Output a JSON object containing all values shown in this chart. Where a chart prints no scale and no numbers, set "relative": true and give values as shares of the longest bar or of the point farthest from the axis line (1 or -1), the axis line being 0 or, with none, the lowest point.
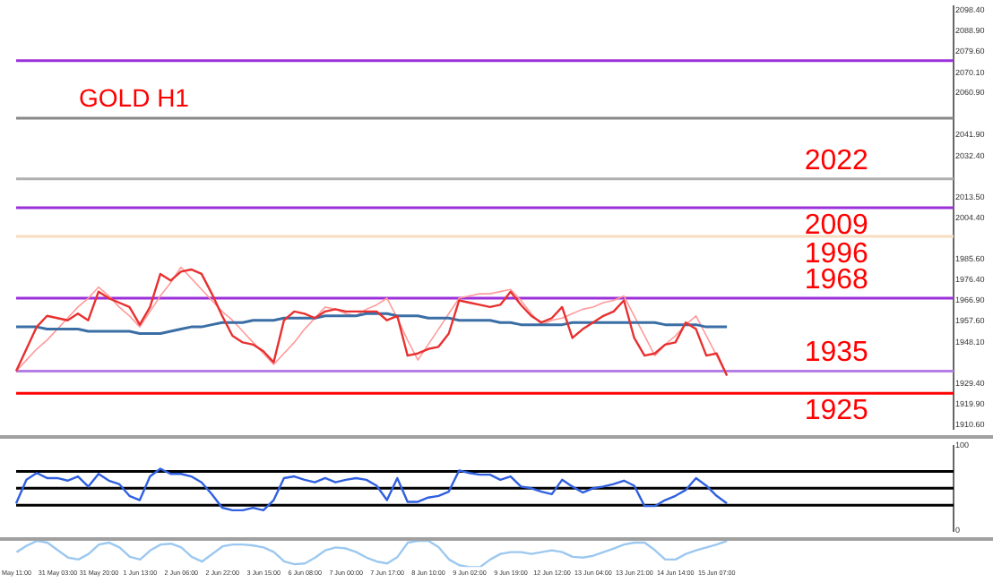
{
  "chart_data": [
    {
      "type": "line",
      "title": "GOLD H1",
      "categories": [
        null,
        null,
        null,
        null,
        null,
        null,
        null,
        null,
        null,
        null,
        null,
        null,
        null,
        null,
        null,
        null,
        null,
        null,
        null,
        null,
        null,
        null,
        null,
        null,
        null,
        null,
        null,
        null,
        null,
        null,
        null,
        null,
        null,
        null,
        null,
        null,
        null,
        null,
        null,
        null,
        null,
        null,
        null,
        null,
        null,
        null,
        null,
        null,
        null,
        null,
        null,
        null,
        null,
        null,
        null,
        null,
        null,
        null,
        null,
        null,
        null,
        null,
        null,
        null,
        null,
        null,
        null,
        null,
        null,
        null,
        null,
        null,
        null,
        null,
        null,
        null,
        null,
        null,
        null,
        null,
        null,
        null,
        null,
        null,
        null,
        null,
        null,
        null,
        null,
        null,
        null,
        null
      ],
      "series": [
        {
          "color": "#e83030",
          "values": [
            1935,
            1945,
            1955,
            1960,
            1959,
            1958,
            1961,
            1958,
            1971,
            1968,
            1966,
            1964,
            1956,
            1964,
            1979,
            1976,
            1980,
            1981,
            1979,
            1970,
            1960,
            1951,
            1948,
            1947,
            1944,
            1939,
            1958,
            1962,
            1961,
            1959,
            1962,
            1963,
            1962,
            1962,
            1962,
            1962,
            1958,
            1960,
            1942,
            1943,
            1945,
            1946,
            1952,
            1967,
            1966,
            1965,
            1964,
            1965,
            1971,
            1965,
            1960,
            1957,
            1959,
            1964,
            1950,
            1954,
            1957,
            1960,
            1962,
            1967,
            1950,
            1942,
            1943,
            1947,
            1948,
            1957,
            1954,
            1942,
            1943,
            1933,
            null,
            null,
            null,
            null,
            null,
            null,
            null,
            null,
            null,
            null,
            null,
            null,
            null,
            null,
            null,
            null,
            null,
            null,
            null,
            null,
            null,
            null
          ]
        },
        {
          "color": "#3a6ea5",
          "values": [
            1955,
            1955,
            1955,
            1954,
            1954,
            1954,
            1954,
            1953,
            1953,
            1953,
            1953,
            1953,
            1952,
            1952,
            1952,
            1953,
            1954,
            1955,
            1955,
            1956,
            1957,
            1957,
            1957,
            1958,
            1958,
            1958,
            1959,
            1959,
            1959,
            1959,
            1960,
            1960,
            1960,
            1960,
            1961,
            1961,
            1961,
            1960,
            1960,
            1960,
            1959,
            1959,
            1959,
            1958,
            1958,
            1958,
            1958,
            1957,
            1957,
            1956,
            1956,
            1956,
            1956,
            1956,
            1957,
            1957,
            1957,
            1957,
            1957,
            1957,
            1957,
            1957,
            1957,
            1956,
            1956,
            1956,
            1956,
            1955,
            1955,
            1955,
            null,
            null,
            null,
            null,
            null,
            null,
            null,
            null,
            null,
            null,
            null,
            null,
            null,
            null,
            null,
            null,
            null,
            null,
            null,
            null,
            null,
            null
          ]
        },
        {
          "color": "#ff9a9a",
          "values": [
            1935,
            1940,
            1945,
            1949,
            1954,
            1959,
            1964,
            1968,
            1973,
            1969,
            1964,
            1960,
            1955,
            1962,
            1969,
            1975,
            1982,
            1977,
            1972,
            1967,
            1962,
            1958,
            1953,
            1948,
            1943,
            1938,
            1943,
            1948,
            1954,
            1959,
            1964,
            1963,
            1961,
            1960,
            1963,
            1965,
            1968,
            1959,
            1949,
            1940,
            1947,
            1954,
            1961,
            1968,
            1969,
            1970,
            1970,
            1971,
            1972,
            1967,
            1961,
            1956,
            1958,
            1959,
            1961,
            1963,
            1964,
            1966,
            1967,
            1969,
            1960,
            1951,
            1942,
            1947,
            1951,
            1956,
            1960,
            1951,
            1942,
            1933,
            null,
            null,
            null,
            null,
            null,
            null,
            null,
            null,
            null,
            null,
            null,
            null,
            null,
            null,
            null,
            null,
            null,
            null,
            null,
            null,
            null,
            null
          ]
        }
      ],
      "ylim": [
        1909,
        2100
      ],
      "yticks": [
        {
          "value": 2098.4,
          "label": "2098.40"
        },
        {
          "value": 2088.9,
          "label": "2088.90"
        },
        {
          "value": 2079.6,
          "label": "2079.60"
        },
        {
          "value": 2070.1,
          "label": "2070.10"
        },
        {
          "value": 2060.9,
          "label": "2060.90"
        },
        {
          "value": 2041.9,
          "label": "2041.90"
        },
        {
          "value": 2032.4,
          "label": "2032.40"
        },
        {
          "value": 2013.5,
          "label": "2013.50"
        },
        {
          "value": 2004.4,
          "label": "2004.40"
        },
        {
          "value": 1985.6,
          "label": "1985.60"
        },
        {
          "value": 1976.4,
          "label": "1976.40"
        },
        {
          "value": 1966.9,
          "label": "1966.90"
        },
        {
          "value": 1957.6,
          "label": "1957.60"
        },
        {
          "value": 1948.1,
          "label": "1948.10"
        },
        {
          "value": 1929.4,
          "label": "1929.40"
        },
        {
          "value": 1919.9,
          "label": "1919.90"
        },
        {
          "value": 1910.6,
          "label": "1910.60"
        }
      ],
      "ref_lines": [
        {
          "axis": "y",
          "value": 2075.5,
          "color": "#9b30d9"
        },
        {
          "axis": "y",
          "value": 2049.5,
          "color": "#888888"
        },
        {
          "axis": "y",
          "value": 2022,
          "label": "2022",
          "color": "#b0b0b0"
        },
        {
          "axis": "y",
          "value": 2009,
          "label": "2009",
          "color": "#9b30d9"
        },
        {
          "axis": "y",
          "value": 1996,
          "label": "1996",
          "color": "#f8dcc0"
        },
        {
          "axis": "y",
          "value": 1968,
          "label": "1968",
          "color": "#9b30d9"
        },
        {
          "axis": "y",
          "value": 1935,
          "label": "1935",
          "color": "#b57ee6"
        },
        {
          "axis": "y",
          "value": 1925,
          "label": "1925",
          "color": "#ff0000"
        }
      ],
      "grid": false,
      "legend": false,
      "marker": "none",
      "line_style": "solid",
      "tick_labels": "y"
    },
    {
      "type": "line",
      "categories": [
        null,
        null,
        null,
        null,
        null,
        null,
        null,
        null,
        null,
        null,
        null,
        null,
        null,
        null,
        null,
        null,
        null,
        null,
        null,
        null,
        null,
        null,
        null,
        null,
        null,
        null,
        null,
        null,
        null,
        null,
        null,
        null,
        null,
        null,
        null,
        null,
        null,
        null,
        null,
        null,
        null,
        null,
        null,
        null,
        null,
        null,
        null,
        null,
        null,
        null,
        null,
        null,
        null,
        null,
        null,
        null,
        null,
        null,
        null,
        null,
        null,
        null,
        null,
        null,
        null,
        null,
        null,
        null,
        null,
        null,
        null,
        null,
        null,
        null,
        null,
        null,
        null,
        null,
        null,
        null,
        null,
        null,
        null,
        null,
        null,
        null,
        null,
        null,
        null,
        null,
        null,
        null
      ],
      "series": [
        {
          "color": "#3060e0",
          "values": [
            32,
            60,
            68,
            62,
            62,
            59,
            64,
            52,
            67,
            59,
            55,
            41,
            36,
            64,
            73,
            67,
            67,
            64,
            57,
            43,
            27,
            24,
            24,
            27,
            24,
            36,
            62,
            64,
            60,
            57,
            62,
            57,
            60,
            62,
            60,
            53,
            36,
            62,
            34,
            34,
            39,
            41,
            46,
            71,
            68,
            66,
            66,
            60,
            64,
            52,
            50,
            46,
            43,
            60,
            52,
            45,
            50,
            52,
            55,
            59,
            53,
            29,
            29,
            36,
            41,
            48,
            62,
            53,
            41,
            32,
            null,
            null,
            null,
            null,
            null,
            null,
            null,
            null,
            null,
            null,
            null,
            null,
            null,
            null,
            null,
            null,
            null,
            null,
            null,
            null,
            null,
            null
          ]
        }
      ],
      "ylim": [
        0,
        100
      ],
      "yticks": [
        0,
        100
      ],
      "ref_lines": [
        {
          "axis": "y",
          "value": 70,
          "color": "#000000"
        },
        {
          "axis": "y",
          "value": 50,
          "color": "#000000"
        },
        {
          "axis": "y",
          "value": 30,
          "color": "#000000"
        }
      ],
      "grid": false,
      "legend": false,
      "marker": "none",
      "line_style": "solid",
      "tick_labels": "y"
    },
    {
      "type": "line",
      "relative": true,
      "categories": [
        "May 11:00",
        null,
        null,
        null,
        "31 May 03:00",
        null,
        null,
        null,
        "31 May 20:00",
        null,
        null,
        null,
        "1 Jun 13:00",
        null,
        null,
        null,
        "2 Jun 06:00",
        null,
        null,
        null,
        "2 Jun 22:00",
        null,
        null,
        null,
        "3 Jun 15:00",
        null,
        null,
        null,
        "6 Jun 08:00",
        null,
        null,
        null,
        "7 Jun 00:00",
        null,
        null,
        null,
        "7 Jun 17:00",
        null,
        null,
        null,
        "8 Jun 10:00",
        null,
        null,
        null,
        "9 Jun 02:00",
        null,
        null,
        null,
        "9 Jun 19:00",
        null,
        null,
        null,
        "12 Jun 12:00",
        null,
        null,
        null,
        "13 Jun 04:00",
        null,
        null,
        null,
        "13 Jun 21:00",
        null,
        null,
        null,
        "14 Jun 14:00",
        null,
        null,
        null,
        "15 Jun 07:00",
        null,
        null,
        null,
        null,
        null,
        null,
        null,
        null,
        null,
        null,
        null,
        null,
        null,
        null,
        null,
        null,
        null,
        null,
        null,
        null,
        null,
        null,
        null
      ],
      "series": [
        {
          "color": "#9cc8f0",
          "values": [
            0.57,
            0.82,
            1,
            0.93,
            0.64,
            0.36,
            0.29,
            0.5,
            0.86,
            0.93,
            0.75,
            0.39,
            0.29,
            0.64,
            0.86,
            0.89,
            0.75,
            0.39,
            0.21,
            0.5,
            0.79,
            0.86,
            0.86,
            0.82,
            0.75,
            0.57,
            0.21,
            0.11,
            0.14,
            0.36,
            0.64,
            0.75,
            0.71,
            0.57,
            0.36,
            0.21,
            0.14,
            0.39,
            0.93,
            1,
            1,
            0.75,
            0.29,
            0.07,
            0,
            0,
            0.29,
            0.5,
            0.57,
            0.57,
            0.5,
            0.57,
            0.64,
            0.57,
            0.39,
            0.36,
            0.43,
            0.57,
            0.71,
            0.86,
            0.93,
            0.93,
            0.64,
            0.29,
            0.29,
            0.5,
            0.64,
            0.75,
            0.86,
            1,
            null,
            null,
            null,
            null,
            null,
            null,
            null,
            null,
            null,
            null,
            null,
            null,
            null,
            null,
            null,
            null,
            null,
            null,
            null,
            null,
            null,
            null
          ]
        }
      ],
      "grid": false,
      "legend": false,
      "marker": "none",
      "line_style": "solid",
      "tick_labels": "x"
    }
  ]
}
